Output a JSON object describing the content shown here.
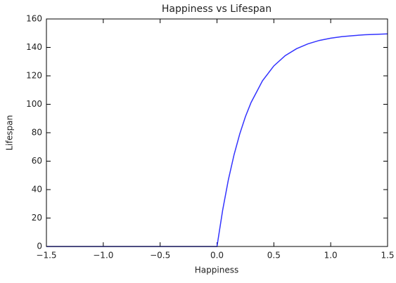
{
  "chart_data": {
    "type": "line",
    "title": "Happiness vs Lifespan",
    "x_label": "Happiness",
    "y_label": "Lifespan",
    "x": [
      -1.5,
      -1.0,
      -0.5,
      0,
      0.05,
      0.1,
      0.15,
      0.2,
      0.25,
      0.3,
      0.4,
      0.5,
      0.6,
      0.7,
      0.8,
      0.9,
      1.0,
      1.1,
      1.2,
      1.3,
      1.4,
      1.5
    ],
    "series": [
      {
        "name": "Lifespan",
        "color": "#3333ff",
        "values": [
          0,
          0,
          0,
          0,
          25.6,
          46.9,
          64.5,
          79.1,
          91.3,
          101.3,
          116.5,
          127.0,
          134.2,
          139.1,
          142.5,
          144.9,
          146.5,
          147.6,
          148.3,
          148.9,
          149.2,
          149.5
        ]
      }
    ],
    "xlim": [
      -1.5,
      1.5
    ],
    "xticks": [
      {
        "value": -1.5,
        "label": "−1.5"
      },
      {
        "value": -1.0,
        "label": "−1.0"
      },
      {
        "value": -0.5,
        "label": "−0.5"
      },
      {
        "value": 0.0,
        "label": "0.0"
      },
      {
        "value": 0.5,
        "label": "0.5"
      },
      {
        "value": 1.0,
        "label": "1.0"
      },
      {
        "value": 1.5,
        "label": "1.5"
      }
    ],
    "ylim": [
      0,
      160
    ],
    "yticks": [
      0,
      20,
      40,
      60,
      80,
      100,
      120,
      140,
      160
    ],
    "grid": false
  }
}
